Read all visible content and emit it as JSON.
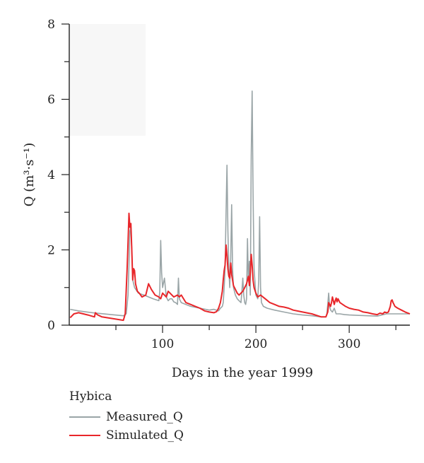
{
  "chart_data": {
    "type": "line",
    "xlabel": "Days in the year 1999",
    "ylabel": "Q (m³·s⁻¹)",
    "xlim": [
      0,
      365
    ],
    "ylim": [
      0,
      8
    ],
    "xticks": [
      100,
      200,
      300
    ],
    "yticks": [
      0,
      2,
      4,
      6,
      8
    ],
    "grid": false,
    "legend": {
      "title": "Hybica",
      "placement": "bottom-left"
    },
    "series": [
      {
        "name": "Measured_Q",
        "color": "#9aa5a7",
        "x": [
          1,
          10,
          25,
          45,
          58,
          61,
          63,
          64,
          65,
          66,
          67,
          68,
          70,
          74,
          80,
          90,
          96,
          97,
          98,
          99,
          100,
          102,
          104,
          106,
          108,
          110,
          112,
          114,
          116,
          117,
          118,
          120,
          125,
          130,
          140,
          150,
          155,
          160,
          162,
          164,
          165,
          166,
          167,
          168,
          169,
          170,
          171,
          172,
          173,
          174,
          175,
          176,
          178,
          180,
          182,
          184,
          185,
          186,
          187,
          188,
          189,
          190,
          191,
          192,
          193,
          194,
          195,
          196,
          197,
          198,
          200,
          202,
          203,
          204,
          205,
          206,
          208,
          212,
          220,
          230,
          240,
          250,
          260,
          270,
          275,
          276,
          277,
          278,
          279,
          280,
          282,
          284,
          286,
          290,
          295,
          300,
          310,
          320,
          330,
          340,
          350,
          360,
          365
        ],
        "y": [
          0.42,
          0.38,
          0.33,
          0.28,
          0.25,
          0.3,
          0.8,
          1.6,
          2.5,
          2.6,
          2.0,
          1.2,
          1.0,
          0.85,
          0.8,
          0.7,
          0.65,
          0.9,
          2.25,
          1.4,
          1.0,
          1.25,
          0.75,
          0.65,
          0.7,
          0.7,
          0.62,
          0.6,
          0.55,
          1.25,
          0.7,
          0.6,
          0.55,
          0.5,
          0.45,
          0.4,
          0.42,
          0.38,
          0.45,
          0.5,
          0.6,
          1.0,
          1.5,
          3.0,
          4.25,
          2.5,
          1.5,
          1.0,
          1.8,
          3.2,
          1.5,
          1.0,
          0.8,
          0.7,
          0.65,
          0.6,
          0.9,
          1.25,
          0.8,
          0.6,
          0.55,
          0.7,
          2.3,
          1.2,
          1.7,
          0.8,
          4.5,
          6.22,
          3.5,
          1.5,
          0.8,
          0.7,
          1.2,
          2.88,
          1.0,
          0.6,
          0.5,
          0.45,
          0.4,
          0.35,
          0.3,
          0.27,
          0.25,
          0.22,
          0.22,
          0.3,
          0.55,
          0.85,
          0.5,
          0.4,
          0.35,
          0.45,
          0.3,
          0.3,
          0.28,
          0.27,
          0.26,
          0.25,
          0.24,
          0.3,
          0.3,
          0.3,
          0.3
        ]
      },
      {
        "name": "Simulated_Q",
        "color": "#e8262a",
        "x": [
          1,
          5,
          10,
          20,
          27,
          28,
          30,
          35,
          45,
          55,
          58,
          60,
          62,
          63,
          64,
          65,
          66,
          67,
          68,
          69,
          70,
          71,
          72,
          73,
          75,
          78,
          82,
          85,
          88,
          92,
          96,
          98,
          100,
          102,
          104,
          106,
          108,
          112,
          116,
          118,
          120,
          125,
          130,
          135,
          140,
          145,
          150,
          155,
          158,
          160,
          162,
          164,
          165,
          166,
          167,
          168,
          169,
          170,
          171,
          172,
          173,
          174,
          176,
          178,
          180,
          182,
          184,
          186,
          188,
          190,
          192,
          193,
          194,
          195,
          196,
          197,
          198,
          200,
          202,
          205,
          210,
          215,
          220,
          225,
          230,
          235,
          240,
          250,
          260,
          270,
          275,
          277,
          278,
          279,
          280,
          281,
          282,
          283,
          284,
          285,
          286,
          287,
          288,
          290,
          293,
          296,
          300,
          305,
          310,
          315,
          320,
          325,
          330,
          333,
          336,
          338,
          340,
          342,
          344,
          345,
          346,
          347,
          349,
          352,
          356,
          360,
          365
        ],
        "y": [
          0.2,
          0.3,
          0.33,
          0.27,
          0.22,
          0.33,
          0.28,
          0.22,
          0.18,
          0.14,
          0.13,
          0.3,
          1.5,
          2.2,
          2.97,
          2.6,
          2.7,
          2.0,
          1.2,
          1.5,
          1.45,
          1.1,
          1.0,
          0.9,
          0.85,
          0.75,
          0.8,
          1.1,
          0.95,
          0.8,
          0.75,
          0.7,
          0.85,
          0.8,
          0.75,
          0.9,
          0.85,
          0.75,
          0.8,
          0.75,
          0.8,
          0.6,
          0.55,
          0.5,
          0.45,
          0.38,
          0.35,
          0.33,
          0.36,
          0.45,
          0.6,
          0.9,
          1.2,
          1.45,
          1.6,
          2.13,
          1.85,
          1.5,
          1.3,
          1.25,
          1.65,
          1.35,
          1.05,
          0.95,
          0.85,
          0.8,
          0.85,
          0.9,
          1.0,
          1.1,
          1.3,
          1.05,
          1.4,
          1.88,
          1.6,
          1.2,
          1.0,
          0.85,
          0.75,
          0.8,
          0.7,
          0.6,
          0.55,
          0.5,
          0.48,
          0.45,
          0.4,
          0.35,
          0.3,
          0.22,
          0.22,
          0.35,
          0.6,
          0.55,
          0.5,
          0.6,
          0.75,
          0.65,
          0.55,
          0.65,
          0.72,
          0.62,
          0.7,
          0.6,
          0.55,
          0.5,
          0.45,
          0.42,
          0.4,
          0.35,
          0.33,
          0.3,
          0.28,
          0.32,
          0.3,
          0.35,
          0.33,
          0.35,
          0.5,
          0.65,
          0.67,
          0.6,
          0.5,
          0.45,
          0.4,
          0.35,
          0.3
        ]
      }
    ]
  }
}
